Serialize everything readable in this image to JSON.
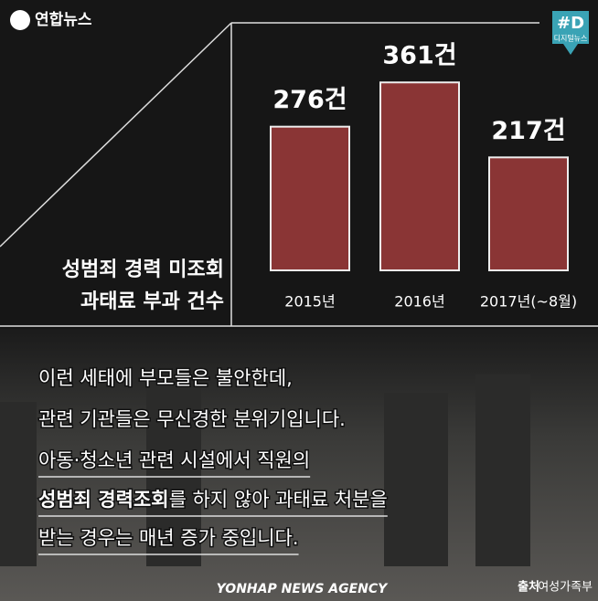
{
  "header": {
    "logo": "연합뉴스",
    "badge": "#D",
    "badge_sub": "디지털뉴스"
  },
  "chart_data": {
    "type": "bar",
    "title_lines": [
      "성범죄 경력 미조회",
      "과태료 부과 건수"
    ],
    "categories": [
      "2015년",
      "2016년",
      "2017년(~8월)"
    ],
    "values": [
      276,
      361,
      217
    ],
    "value_labels": [
      "276건",
      "361건",
      "217건"
    ],
    "color": "#8a3535"
  },
  "caption": {
    "lines": [
      [
        "이런 세태에 부모들은 불안한데,"
      ],
      [
        "관련 기관들은 무신경한 분위기입니다."
      ],
      [
        "아동·청소년 관련 시설에서 직원의"
      ],
      [
        "성범죄 경력조회",
        "를 하지 않아 과태료 처분을"
      ],
      [
        "받는 경우는 매년 증가 중입니다."
      ]
    ]
  },
  "footer": {
    "agency": "YONHAP NEWS AGENCY",
    "source_label": "출처",
    "source": "여성가족부"
  }
}
